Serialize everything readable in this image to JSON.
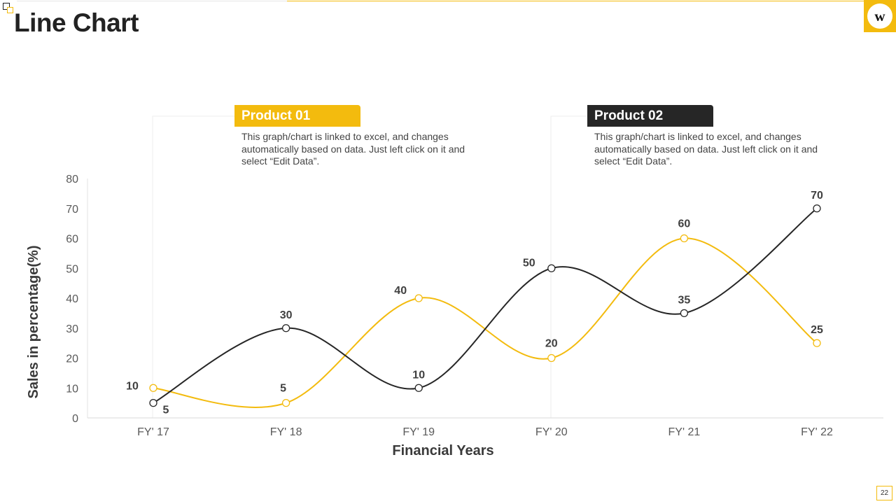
{
  "page": {
    "title": "Line Chart",
    "logo_letter": "w",
    "page_number": "22"
  },
  "colors": {
    "accent": "#F3BB0E",
    "dark": "#262626",
    "axis": "#D9D9D9"
  },
  "legend": [
    {
      "title": "Product 01",
      "description": "This graph/chart is linked to excel, and changes automatically based on data. Just left click on it and select “Edit Data”.",
      "color": "#F3BB0E"
    },
    {
      "title": "Product  02",
      "description": "This graph/chart is linked to excel, and changes automatically based on data. Just left click on it and select “Edit Data”.",
      "color": "#262626"
    }
  ],
  "chart_data": {
    "type": "line",
    "title": "",
    "xlabel": "Financial Years",
    "ylabel": "Sales in percentage(%)",
    "categories": [
      "FY' 17",
      "FY' 18",
      "FY' 19",
      "FY' 20",
      "FY' 21",
      "FY' 22"
    ],
    "ylim": [
      0,
      80
    ],
    "yticks": [
      0,
      10,
      20,
      30,
      40,
      50,
      60,
      70,
      80
    ],
    "grid": false,
    "smooth": true,
    "series": [
      {
        "name": "Product 01",
        "color": "#F3BB0E",
        "values": [
          10,
          5,
          40,
          20,
          60,
          25
        ]
      },
      {
        "name": "Product  02",
        "color": "#262626",
        "values": [
          5,
          30,
          10,
          50,
          35,
          70
        ]
      }
    ]
  }
}
